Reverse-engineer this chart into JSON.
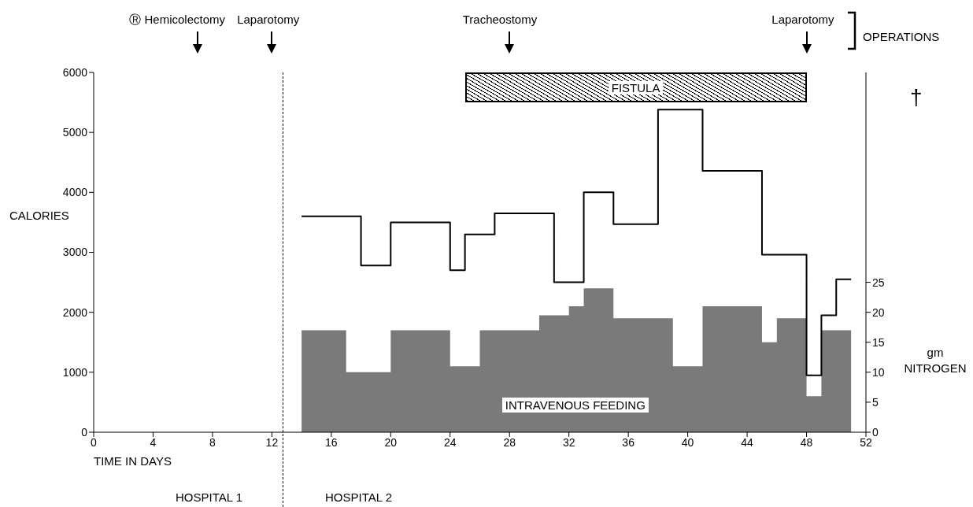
{
  "chart_data": {
    "type": "step",
    "xlabel": "TIME IN DAYS",
    "ylabel": "CALORIES",
    "y2label": "gm NITROGEN",
    "xlim": [
      0,
      52
    ],
    "xticks": [
      0,
      4,
      8,
      12,
      16,
      20,
      24,
      28,
      32,
      36,
      40,
      44,
      48,
      52
    ],
    "ylim": [
      0,
      6000
    ],
    "yticks": [
      0,
      1000,
      2000,
      3000,
      4000,
      5000,
      6000
    ],
    "y2lim": [
      0,
      60
    ],
    "y2ticks": [
      0,
      5,
      10,
      15,
      20,
      25
    ],
    "series": [
      {
        "color": "#000000",
        "x": [
          14,
          18,
          20,
          24,
          25,
          27,
          31,
          33,
          35,
          38,
          41,
          45,
          48,
          49,
          50,
          51
        ],
        "values": [
          3600,
          2780,
          3500,
          2700,
          3300,
          3650,
          2500,
          4000,
          3470,
          5380,
          4360,
          2960,
          950,
          1950,
          2550,
          2550
        ]
      },
      {
        "type": "area",
        "name": "INTRAVENOUS FEEDING",
        "axis": "y2",
        "color": "#7a7a7a",
        "x": [
          14,
          17,
          17,
          20,
          20,
          24,
          24,
          26,
          26,
          30,
          30,
          32,
          32,
          33,
          33,
          35,
          35,
          39,
          39,
          41,
          41,
          45,
          45,
          46,
          46,
          48,
          48,
          49,
          49,
          51
        ],
        "values": [
          17,
          17,
          10,
          10,
          17,
          17,
          11,
          11,
          17,
          17,
          19.5,
          19.5,
          21,
          21,
          24,
          24,
          19,
          19,
          11,
          11,
          21,
          21,
          15,
          15,
          19,
          19,
          6,
          6,
          17,
          17
        ]
      }
    ],
    "ref_lines": [
      {
        "axis": "x",
        "value": 12.7,
        "line_style": "dashed",
        "color": "#000000"
      }
    ],
    "bands": [
      {
        "axis": "x",
        "from": 25,
        "to": 48,
        "label": "FISTULA",
        "color": "#000000"
      }
    ],
    "annotations": [
      "Ⓡ Hemicolectomy",
      "Laparotomy",
      "Tracheostomy",
      "Laparotomy",
      "OPERATIONS",
      "†",
      "HOSPITAL 1",
      "HOSPITAL 2"
    ]
  }
}
